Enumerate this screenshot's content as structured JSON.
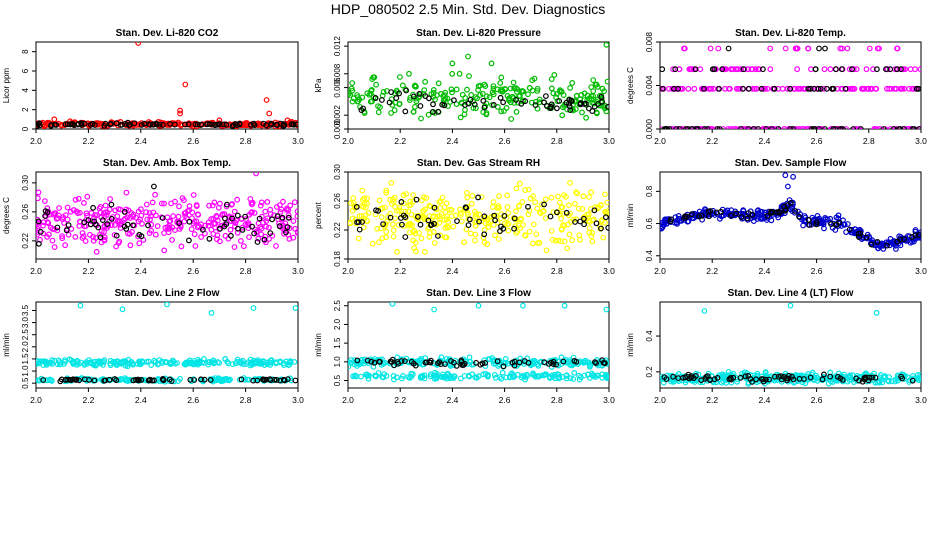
{
  "figure": {
    "title": "HDP_080502  2.5 Min. Std. Dev. Diagnostics"
  },
  "chart_data": [
    {
      "type": "scatter",
      "title": "Stan. Dev. Li-820 CO2",
      "ylabel": "Licor ppm",
      "xlim": [
        2.0,
        3.0
      ],
      "xticks": [
        "2.0",
        "2.2",
        "2.4",
        "2.6",
        "2.8",
        "3.0"
      ],
      "ylim": [
        0,
        9
      ],
      "yticks": [
        "0",
        "2",
        "4",
        "6",
        "8"
      ],
      "series": [
        {
          "name": "color",
          "color": "#ff0000",
          "band": [
            0.25,
            0.75
          ],
          "count": 230,
          "outliers": [
            [
              2.39,
              8.9
            ],
            [
              2.57,
              4.6
            ],
            [
              2.55,
              1.9
            ],
            [
              2.55,
              1.6
            ],
            [
              2.88,
              3.0
            ],
            [
              2.89,
              1.6
            ],
            [
              2.07,
              1.0
            ],
            [
              2.13,
              0.8
            ],
            [
              2.7,
              0.9
            ],
            [
              2.96,
              0.9
            ]
          ]
        },
        {
          "name": "black",
          "color": "#000000",
          "band": [
            0.3,
            0.65
          ],
          "count": 90
        }
      ]
    },
    {
      "type": "scatter",
      "title": "Stan. Dev. Li-820 Pressure",
      "ylabel": "kPa",
      "xlim": [
        2.0,
        3.0
      ],
      "xticks": [
        "2.0",
        "2.2",
        "2.4",
        "2.6",
        "2.8",
        "3.0"
      ],
      "ylim": [
        0,
        0.0126
      ],
      "yticks": [
        "0.000",
        "0.002",
        "0.006",
        "0.008",
        "0.012"
      ],
      "series": [
        {
          "name": "color",
          "color": "#00bb00",
          "band": [
            0.001,
            0.008
          ],
          "count": 260,
          "outliers": [
            [
              2.99,
              0.0122
            ],
            [
              2.46,
              0.0105
            ],
            [
              2.55,
              0.0095
            ],
            [
              2.4,
              0.0095
            ]
          ]
        },
        {
          "name": "black",
          "color": "#000000",
          "band": [
            0.002,
            0.006
          ],
          "count": 60
        }
      ]
    },
    {
      "type": "scatter",
      "title": "Stan. Dev. Li-820 Temp.",
      "ylabel": "degrees C",
      "xlim": [
        2.0,
        3.0
      ],
      "xticks": [
        "2.0",
        "2.2",
        "2.4",
        "2.6",
        "2.8",
        "3.0"
      ],
      "ylim": [
        0,
        0.008
      ],
      "yticks": [
        "0.000",
        "0.004",
        "0.008"
      ],
      "levels": [
        0.0,
        0.0037,
        0.0055,
        0.0074
      ],
      "series": [
        {
          "name": "color",
          "color": "#ff00ff",
          "count": 300
        },
        {
          "name": "black",
          "color": "#000000",
          "count": 90
        }
      ]
    },
    {
      "type": "scatter",
      "title": "Stan. Dev. Amb. Box Temp.",
      "ylabel": "degrees C",
      "xlim": [
        2.0,
        3.0
      ],
      "xticks": [
        "2.0",
        "2.2",
        "2.4",
        "2.6",
        "2.8",
        "3.0"
      ],
      "ylim": [
        0.195,
        0.315
      ],
      "yticks": [
        "0.22",
        "0.26",
        "0.30"
      ],
      "series": [
        {
          "name": "color",
          "color": "#ff00ff",
          "band": [
            0.205,
            0.29
          ],
          "count": 360,
          "outliers": [
            [
              2.84,
              0.313
            ]
          ]
        },
        {
          "name": "black",
          "color": "#000000",
          "band": [
            0.215,
            0.27
          ],
          "count": 60,
          "outliers": [
            [
              2.45,
              0.295
            ]
          ]
        }
      ]
    },
    {
      "type": "scatter",
      "title": "Stan. Dev. Gas Stream RH",
      "ylabel": "percent",
      "xlim": [
        2.0,
        3.0
      ],
      "xticks": [
        "2.0",
        "2.2",
        "2.4",
        "2.6",
        "2.8",
        "3.0"
      ],
      "ylim": [
        0.18,
        0.3
      ],
      "yticks": [
        "0.18",
        "0.22",
        "0.26",
        "0.30"
      ],
      "series": [
        {
          "name": "color",
          "color": "#ffff00",
          "band": [
            0.19,
            0.285
          ],
          "count": 340
        },
        {
          "name": "black",
          "color": "#000000",
          "band": [
            0.205,
            0.265
          ],
          "count": 55
        }
      ]
    },
    {
      "type": "scatter",
      "title": "Stan. Dev. Sample Flow",
      "ylabel": "ml/min",
      "xlim": [
        2.0,
        3.0
      ],
      "xticks": [
        "2.0",
        "2.2",
        "2.4",
        "2.6",
        "2.8",
        "3.0"
      ],
      "ylim": [
        0.38,
        0.92
      ],
      "yticks": [
        "0.4",
        "0.6",
        "0.8"
      ],
      "trend": [
        [
          2.0,
          0.6
        ],
        [
          2.2,
          0.67
        ],
        [
          2.3,
          0.65
        ],
        [
          2.45,
          0.66
        ],
        [
          2.5,
          0.71
        ],
        [
          2.55,
          0.62
        ],
        [
          2.7,
          0.6
        ],
        [
          2.8,
          0.5
        ],
        [
          2.85,
          0.46
        ],
        [
          3.0,
          0.53
        ]
      ],
      "series": [
        {
          "name": "color",
          "color": "#0000cc",
          "spread": 0.06,
          "count": 330,
          "outliers": [
            [
              2.48,
              0.9
            ],
            [
              2.51,
              0.89
            ],
            [
              2.49,
              0.83
            ]
          ]
        },
        {
          "name": "black",
          "color": "#000000",
          "spread": 0.04,
          "count": 55
        }
      ]
    },
    {
      "type": "scatter",
      "title": "Stan. Dev. Line 2 Flow",
      "ylabel": "ml/min",
      "xlim": [
        2.0,
        3.0
      ],
      "xticks": [
        "2.0",
        "2.2",
        "2.4",
        "2.6",
        "2.8",
        "3.0"
      ],
      "ylim": [
        0.3,
        3.85
      ],
      "yticks": [
        "0.5",
        "1.0",
        "1.5",
        "2.0",
        "2.5",
        "3.0",
        "3.5"
      ],
      "series": [
        {
          "name": "color",
          "color": "#00e5e5",
          "band": [
            1.2,
            1.5
          ],
          "count": 220,
          "outliers": [
            [
              2.17,
              3.7
            ],
            [
              2.33,
              3.55
            ],
            [
              2.5,
              3.75
            ],
            [
              2.67,
              3.4
            ],
            [
              2.83,
              3.6
            ],
            [
              2.99,
              3.6
            ]
          ]
        },
        {
          "name": "color",
          "color": "#00e5e5",
          "band": [
            0.55,
            0.72
          ],
          "count": 150
        },
        {
          "name": "black",
          "color": "#000000",
          "band": [
            0.57,
            0.7
          ],
          "count": 60
        }
      ]
    },
    {
      "type": "scatter",
      "title": "Stan. Dev. Line 3 Flow",
      "ylabel": "ml/min",
      "xlim": [
        2.0,
        3.0
      ],
      "xticks": [
        "2.0",
        "2.2",
        "2.4",
        "2.6",
        "2.8",
        "3.0"
      ],
      "ylim": [
        0.3,
        2.6
      ],
      "yticks": [
        "0.5",
        "1.0",
        "1.5",
        "2.0",
        "2.5"
      ],
      "series": [
        {
          "name": "color",
          "color": "#00e5e5",
          "band": [
            0.85,
            1.12
          ],
          "count": 220,
          "outliers": [
            [
              2.17,
              2.55
            ],
            [
              2.33,
              2.4
            ],
            [
              2.5,
              2.5
            ],
            [
              2.67,
              2.5
            ],
            [
              2.83,
              2.5
            ],
            [
              2.99,
              2.4
            ]
          ]
        },
        {
          "name": "color",
          "color": "#00e5e5",
          "band": [
            0.52,
            0.72
          ],
          "count": 150
        },
        {
          "name": "black",
          "color": "#000000",
          "band": [
            0.88,
            1.08
          ],
          "count": 60
        }
      ]
    },
    {
      "type": "scatter",
      "title": "Stan. Dev. Line 4 (LT) Flow",
      "ylabel": "ml/min",
      "xlim": [
        2.0,
        3.0
      ],
      "xticks": [
        "2.0",
        "2.2",
        "2.4",
        "2.6",
        "2.8",
        "3.0"
      ],
      "ylim": [
        0.11,
        0.59
      ],
      "yticks": [
        "0.2",
        "0.4"
      ],
      "series": [
        {
          "name": "color",
          "color": "#00e5e5",
          "band": [
            0.13,
            0.2
          ],
          "count": 320,
          "outliers": [
            [
              2.17,
              0.54
            ],
            [
              2.5,
              0.57
            ],
            [
              2.83,
              0.53
            ]
          ]
        },
        {
          "name": "black",
          "color": "#000000",
          "band": [
            0.14,
            0.19
          ],
          "count": 70
        }
      ]
    }
  ]
}
